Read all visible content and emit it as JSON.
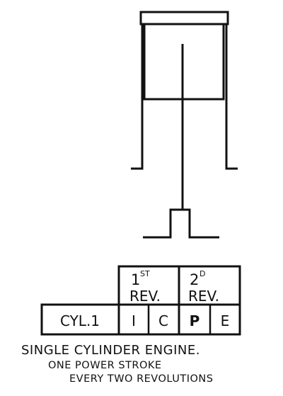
{
  "table": {
    "rev1": {
      "num": "1",
      "sup": "ST",
      "label": "REV."
    },
    "rev2": {
      "num": "2",
      "sup": "D",
      "label": "REV."
    },
    "cylinder": "CYL.1",
    "strokes": [
      "I",
      "C",
      "P",
      "E"
    ]
  },
  "caption": {
    "line1": "SINGLE CYLINDER ENGINE.",
    "line2": "ONE POWER STROKE",
    "line3": "EVERY TWO REVOLUTIONS"
  }
}
